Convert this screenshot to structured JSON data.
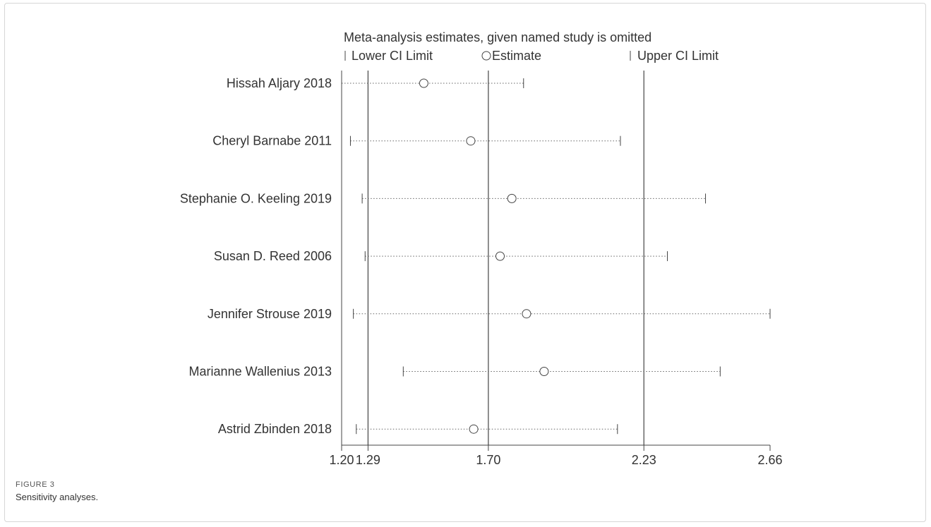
{
  "figure": {
    "label": "FIGURE 3",
    "caption": "Sensitivity analyses."
  },
  "chart_data": {
    "type": "scatter",
    "title": "Meta-analysis estimates, given named study is omitted",
    "legend": {
      "lower": "Lower CI Limit",
      "estimate": "Estimate",
      "upper": "Upper CI Limit",
      "placement": "top"
    },
    "xlim": [
      1.2,
      2.66
    ],
    "x_ticks": [
      {
        "value": 1.2,
        "label": "1.20"
      },
      {
        "value": 1.29,
        "label": "1.29"
      },
      {
        "value": 1.7,
        "label": "1.70"
      },
      {
        "value": 2.23,
        "label": "2.23"
      },
      {
        "value": 2.66,
        "label": "2.66"
      }
    ],
    "reference_lines": [
      1.29,
      1.7,
      2.23
    ],
    "studies": [
      {
        "name": "Hissah Aljary 2018",
        "lower": 1.2,
        "estimate": 1.48,
        "upper": 1.82
      },
      {
        "name": "Cheryl Barnabe 2011",
        "lower": 1.23,
        "estimate": 1.64,
        "upper": 2.15
      },
      {
        "name": "Stephanie O. Keeling 2019",
        "lower": 1.27,
        "estimate": 1.78,
        "upper": 2.44
      },
      {
        "name": "Susan D. Reed 2006",
        "lower": 1.28,
        "estimate": 1.74,
        "upper": 2.31
      },
      {
        "name": "Jennifer Strouse 2019",
        "lower": 1.24,
        "estimate": 1.83,
        "upper": 2.66
      },
      {
        "name": "Marianne Wallenius 2013",
        "lower": 1.41,
        "estimate": 1.89,
        "upper": 2.49
      },
      {
        "name": "Astrid Zbinden 2018",
        "lower": 1.25,
        "estimate": 1.65,
        "upper": 2.14
      }
    ],
    "colors": {
      "line": "#444444",
      "dots": "#666666"
    }
  }
}
